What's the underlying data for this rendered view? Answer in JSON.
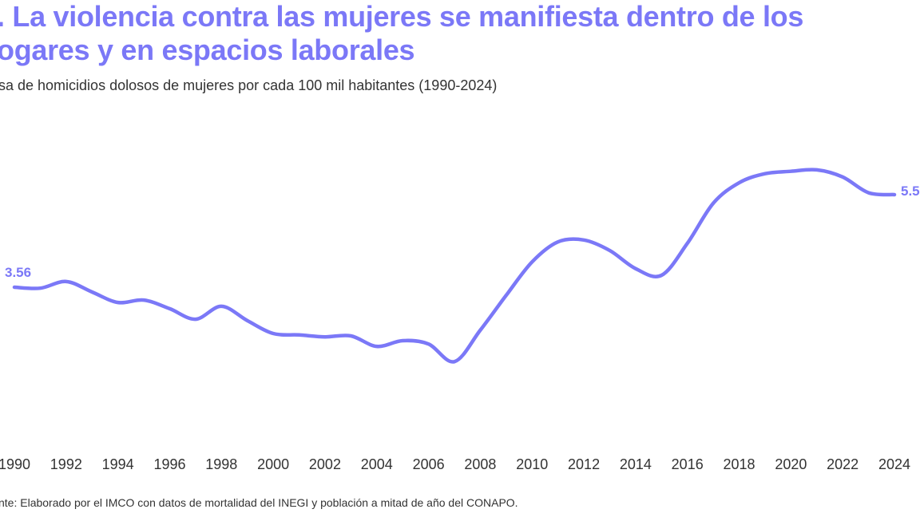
{
  "title": {
    "line1": ". La violencia contra las mujeres se manifiesta dentro de los",
    "line2": "ogares y en espacios laborales"
  },
  "subtitle": "sa de homicidios dolosos de mujeres por cada 100 mil habitantes (1990-2024)",
  "source": "nte: Elaborado por el IMCO con datos de mortalidad del INEGI y población a mitad de año del CONAPO.",
  "colors": {
    "line": "#7b78f7",
    "text": "#333333"
  },
  "chart_data": {
    "type": "line",
    "title": "",
    "xlabel": "",
    "ylabel": "",
    "grid": false,
    "x": [
      1990,
      1991,
      1992,
      1993,
      1994,
      1995,
      1996,
      1997,
      1998,
      1999,
      2000,
      2001,
      2002,
      2003,
      2004,
      2005,
      2006,
      2007,
      2008,
      2009,
      2010,
      2011,
      2012,
      2013,
      2014,
      2015,
      2016,
      2017,
      2018,
      2019,
      2020,
      2021,
      2022,
      2023,
      2024
    ],
    "series": [
      {
        "values": [
          3.56,
          3.54,
          3.68,
          3.46,
          3.24,
          3.29,
          3.11,
          2.89,
          3.16,
          2.86,
          2.59,
          2.56,
          2.52,
          2.54,
          2.32,
          2.44,
          2.37,
          2.0,
          2.66,
          3.39,
          4.09,
          4.51,
          4.55,
          4.33,
          3.95,
          3.81,
          4.48,
          5.32,
          5.75,
          5.94,
          5.99,
          6.02,
          5.87,
          5.54,
          5.5
        ]
      }
    ],
    "x_tick_labels": [
      "1990",
      "1992",
      "1994",
      "1996",
      "1998",
      "2000",
      "2002",
      "2004",
      "2006",
      "2008",
      "2010",
      "2012",
      "2014",
      "2016",
      "2018",
      "2020",
      "2022",
      "2024"
    ],
    "data_labels": {
      "start": "3.56",
      "end": "5.5"
    }
  }
}
